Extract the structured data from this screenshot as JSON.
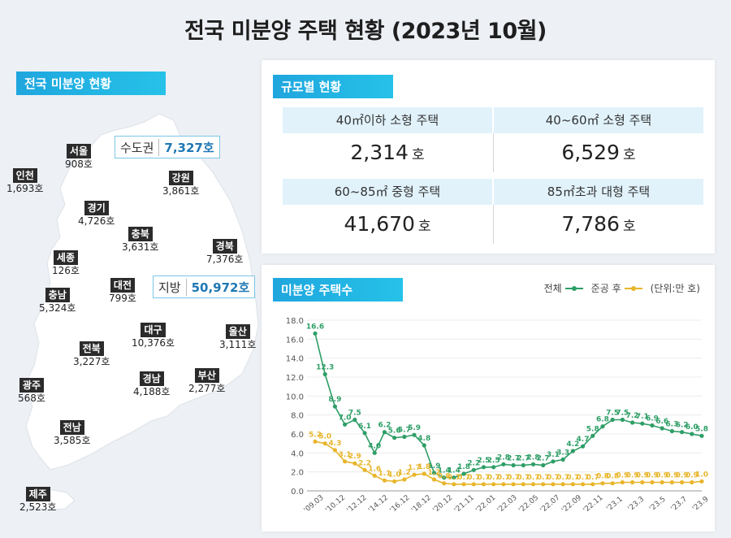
{
  "title": "전국 미분양 주택 현황 (2023년 10월)",
  "map": {
    "tag": "전국 미분양 현황",
    "capital_callout": {
      "name": "수도권",
      "value": "7,327호"
    },
    "local_callout": {
      "name": "지방",
      "value": "50,972호"
    },
    "regions": [
      {
        "name": "서울",
        "value": "908호"
      },
      {
        "name": "인천",
        "value": "1,693호"
      },
      {
        "name": "강원",
        "value": "3,861호"
      },
      {
        "name": "경기",
        "value": "4,726호"
      },
      {
        "name": "충북",
        "value": "3,631호"
      },
      {
        "name": "경북",
        "value": "7,376호"
      },
      {
        "name": "세종",
        "value": "126호"
      },
      {
        "name": "충남",
        "value": "5,324호"
      },
      {
        "name": "대전",
        "value": "799호"
      },
      {
        "name": "대구",
        "value": "10,376호"
      },
      {
        "name": "울산",
        "value": "3,111호"
      },
      {
        "name": "전북",
        "value": "3,227호"
      },
      {
        "name": "광주",
        "value": "568호"
      },
      {
        "name": "경남",
        "value": "4,188호"
      },
      {
        "name": "부산",
        "value": "2,277호"
      },
      {
        "name": "전남",
        "value": "3,585호"
      },
      {
        "name": "제주",
        "value": "2,523호"
      }
    ]
  },
  "size": {
    "tag": "규모별 현황",
    "cells": [
      {
        "label": "40㎡이하 소형 주택",
        "value": "2,314",
        "unit": "호"
      },
      {
        "label": "40~60㎡ 소형 주택",
        "value": "6,529",
        "unit": "호"
      },
      {
        "label": "60~85㎡ 중형 주택",
        "value": "41,670",
        "unit": "호"
      },
      {
        "label": "85㎡초과 대형 주택",
        "value": "7,786",
        "unit": "호"
      }
    ]
  },
  "chart_section": {
    "tag": "미분양 주택수",
    "legend_total": "전체",
    "legend_after": "준공 후",
    "unit_note": "(단위:만 호)"
  },
  "chart_data": {
    "type": "line",
    "ylim": [
      0,
      18
    ],
    "yticks": [
      "0.0",
      "2.0",
      "4.0",
      "6.0",
      "8.0",
      "10.0",
      "12.0",
      "14.0",
      "16.0",
      "18.0"
    ],
    "xticks": [
      "'09.03",
      "'10.12",
      "'12.12",
      "'14.12",
      "'16.12",
      "'18.12",
      "'20.12",
      "'21.11",
      "'22.01",
      "'22.03",
      "'22.05",
      "'22.07",
      "'22.09",
      "'22.11",
      "'23.1",
      "'23.3",
      "'23.5",
      "'23.7",
      "'23.9"
    ],
    "colors": {
      "total": "#2e9e67",
      "after": "#e8b52b"
    },
    "series": [
      {
        "name": "전체",
        "values": [
          16.6,
          12.3,
          8.9,
          7.0,
          7.5,
          6.1,
          4.0,
          6.2,
          5.6,
          5.7,
          5.9,
          4.8,
          1.9,
          1.4,
          1.4,
          1.8,
          2.2,
          2.5,
          2.5,
          2.8,
          2.7,
          2.7,
          2.8,
          2.7,
          3.1,
          3.3,
          4.2,
          4.7,
          5.8,
          6.8,
          7.5,
          7.5,
          7.2,
          7.1,
          6.9,
          6.6,
          6.3,
          6.2,
          6.0,
          5.8
        ],
        "labels": [
          "16.6",
          "12.3",
          "8.9",
          "7.0",
          "7.5",
          "6.1",
          "4.0",
          "6.2",
          "5.6",
          "5.7",
          "5.9",
          "4.8",
          "1.9",
          "1.4",
          "1.4",
          "1.8",
          "2.2",
          "2.5",
          "2.5",
          "2.8",
          "2.7",
          "2.7",
          "2.8",
          "2.7",
          "3.1",
          "3.3",
          "4.2",
          "4.7",
          "5.8",
          "6.8",
          "7.5",
          "7.5",
          "7.2",
          "7.1",
          "6.9",
          "6.6",
          "6.3",
          "6.2",
          "6.0",
          "5.8"
        ]
      },
      {
        "name": "준공 후",
        "values": [
          5.2,
          5.0,
          4.3,
          3.1,
          2.9,
          2.2,
          1.6,
          1.1,
          1.0,
          1.2,
          1.7,
          1.8,
          1.2,
          0.8,
          0.7,
          0.7,
          0.7,
          0.7,
          0.7,
          0.7,
          0.7,
          0.7,
          0.7,
          0.7,
          0.7,
          0.7,
          0.7,
          0.7,
          0.7,
          0.8,
          0.8,
          0.9,
          0.9,
          0.9,
          0.9,
          0.9,
          0.9,
          0.9,
          0.9,
          1.0
        ],
        "labels": [
          "5.2",
          "5.0",
          "4.3",
          "3.1",
          "2.9",
          "2.2",
          "1.6",
          "1.1",
          "1.0",
          "1.2",
          "1.7",
          "1.8",
          "1.2",
          "0.8",
          "0.7",
          "0.7",
          "0.7",
          "0.7",
          "0.7",
          "0.7",
          "0.7",
          "0.7",
          "0.7",
          "0.7",
          "0.7",
          "0.7",
          "0.7",
          "0.7",
          "0.7",
          "0.8",
          "0.8",
          "0.9",
          "0.9",
          "0.9",
          "0.9",
          "0.9",
          "0.9",
          "0.9",
          "0.9",
          "1.0"
        ]
      }
    ]
  }
}
